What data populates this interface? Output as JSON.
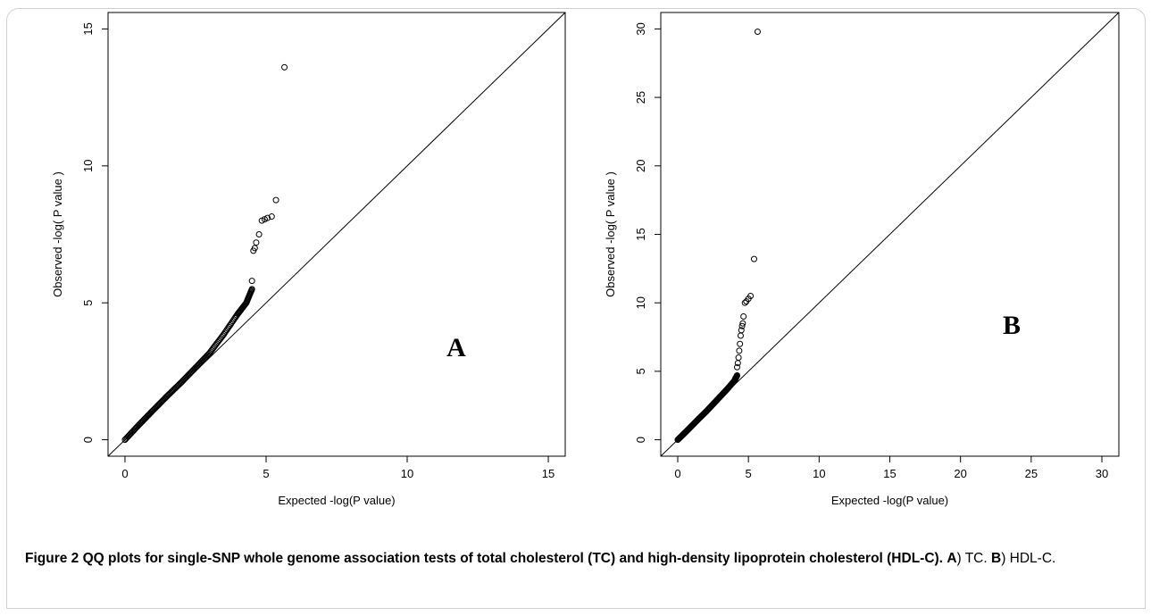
{
  "chart_data": [
    {
      "type": "scatter",
      "panel_label": "A",
      "xlabel": "Expected -log(P value)",
      "ylabel": "Observed -log( P value )",
      "xlim": [
        0,
        15
      ],
      "ylim": [
        0,
        15
      ],
      "x_ticks": [
        0,
        5,
        10,
        15
      ],
      "y_ticks": [
        0,
        5,
        10,
        15
      ],
      "reference_line": "y = x",
      "bulk_points": {
        "x": [
          0,
          0.5,
          1,
          1.5,
          2,
          2.5,
          3,
          3.5,
          4,
          4.3,
          4.5
        ],
        "y": [
          0,
          0.55,
          1.08,
          1.6,
          2.1,
          2.63,
          3.17,
          3.85,
          4.6,
          5.0,
          5.5
        ]
      },
      "outliers": [
        {
          "x": 4.5,
          "y": 5.8
        },
        {
          "x": 4.55,
          "y": 6.9
        },
        {
          "x": 4.6,
          "y": 7.0
        },
        {
          "x": 4.65,
          "y": 7.2
        },
        {
          "x": 4.75,
          "y": 7.5
        },
        {
          "x": 4.85,
          "y": 8.0
        },
        {
          "x": 4.95,
          "y": 8.05
        },
        {
          "x": 5.05,
          "y": 8.1
        },
        {
          "x": 5.2,
          "y": 8.15
        },
        {
          "x": 5.35,
          "y": 8.75
        },
        {
          "x": 5.65,
          "y": 13.6
        }
      ]
    },
    {
      "type": "scatter",
      "panel_label": "B",
      "xlabel": "Expected -log(P value)",
      "ylabel": "Observed -log( P value )",
      "xlim": [
        0,
        30
      ],
      "ylim": [
        0,
        30
      ],
      "x_ticks": [
        0,
        5,
        10,
        15,
        20,
        25,
        30
      ],
      "y_ticks": [
        0,
        5,
        10,
        15,
        20,
        25,
        30
      ],
      "reference_line": "y = x",
      "bulk_points": {
        "x": [
          0,
          0.5,
          1,
          1.5,
          2,
          2.5,
          3,
          3.5,
          4,
          4.2
        ],
        "y": [
          0,
          0.5,
          1.02,
          1.55,
          2.05,
          2.6,
          3.15,
          3.7,
          4.3,
          4.7
        ]
      },
      "outliers": [
        {
          "x": 4.2,
          "y": 5.3
        },
        {
          "x": 4.25,
          "y": 5.6
        },
        {
          "x": 4.3,
          "y": 6.0
        },
        {
          "x": 4.35,
          "y": 6.5
        },
        {
          "x": 4.4,
          "y": 7.0
        },
        {
          "x": 4.45,
          "y": 7.6
        },
        {
          "x": 4.5,
          "y": 8.0
        },
        {
          "x": 4.55,
          "y": 8.3
        },
        {
          "x": 4.6,
          "y": 8.5
        },
        {
          "x": 4.65,
          "y": 9.0
        },
        {
          "x": 4.75,
          "y": 10.0
        },
        {
          "x": 4.85,
          "y": 10.1
        },
        {
          "x": 5.0,
          "y": 10.3
        },
        {
          "x": 5.15,
          "y": 10.5
        },
        {
          "x": 5.4,
          "y": 13.2
        },
        {
          "x": 5.65,
          "y": 29.8
        }
      ]
    }
  ],
  "caption": {
    "figure_label": "Figure 2",
    "title": "QQ plots for single-SNP whole genome association tests of total cholesterol (TC) and high-density lipoprotein cholesterol (HDL-C).",
    "part_a_label": "A",
    "part_a_text": ") TC.",
    "part_b_label": "B",
    "part_b_text": ") HDL-C."
  }
}
